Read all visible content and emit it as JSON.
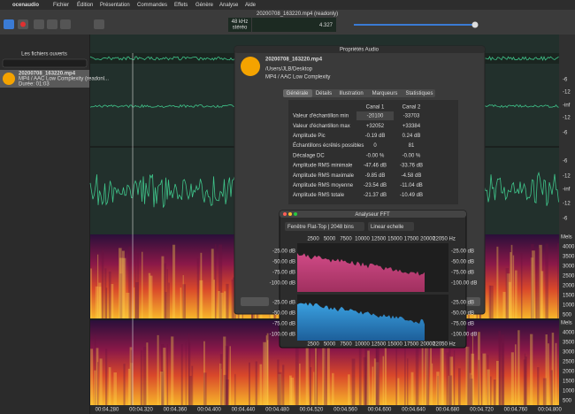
{
  "menu": {
    "app": "ocenaudio",
    "items": [
      "Fichier",
      "Édition",
      "Présentation",
      "Commandes",
      "Effets",
      "Génère",
      "Analyse",
      "Aide"
    ]
  },
  "window_title": "20200708_163220.mp4 (readonly)",
  "toolbar": {
    "rate": "48 kHz",
    "channels": "stéréo",
    "time": "4.327"
  },
  "sidebar": {
    "title": "Les fichiers ouverts",
    "file": {
      "name": "20200708_163220.mp4",
      "format": "MP4 / AAC Low Complexity (readonl...",
      "duration": "Durée: 01:03"
    }
  },
  "level_scale": {
    "channel_1": [
      "-6",
      "-12",
      "-inf",
      "-12",
      "-6"
    ],
    "channel_2": [
      "-6",
      "-12",
      "-inf",
      "-12",
      "-6"
    ]
  },
  "spectrogram_scale": {
    "unit": "Mels",
    "labels": [
      "4000",
      "3500",
      "3000",
      "2500",
      "2000",
      "1500",
      "1000",
      "500"
    ]
  },
  "timeline": [
    "00:04.280",
    "00:04.320",
    "00:04.360",
    "00:04.400",
    "00:04.440",
    "00:04.480",
    "00:04.520",
    "00:04.560",
    "00:04.600",
    "00:04.640",
    "00:04.680",
    "00:04.720",
    "00:04.760",
    "00:04.800"
  ],
  "properties": {
    "title": "Propriétés Audio",
    "file_name": "20200708_163220.mp4",
    "path": "/Users/JLB/Desktop",
    "format": "MP4 / AAC Low Complexity",
    "tabs": [
      "Générale",
      "Détails",
      "Illustration",
      "Marqueurs",
      "Statistiques"
    ],
    "columns": [
      "Canal 1",
      "Canal 2"
    ],
    "rows": [
      [
        "Valeur d'échantillon min",
        "-20100",
        "-33703"
      ],
      [
        "Valeur d'échantillon max",
        "+32052",
        "+33384"
      ],
      [
        "Amplitude Pic",
        "-0.19 dB",
        "0.24 dB"
      ],
      [
        "Échantillons écrêtés possibles",
        "0",
        "81"
      ],
      [
        "Décalage DC",
        "-0.00 %",
        "-0.00 %"
      ],
      [
        "Amplitude RMS minimale",
        "-47.46 dB",
        "-33.76 dB"
      ],
      [
        "Amplitude RMS maximale",
        "-9.85 dB",
        "-4.58 dB"
      ],
      [
        "Amplitude RMS moyenne",
        "-23.54 dB",
        "-11.04 dB"
      ],
      [
        "Amplitude RMS totale",
        "-21.37 dB",
        "-10.49 dB"
      ]
    ]
  },
  "fft": {
    "title": "Analyseur FFT",
    "window": "Fenêtre Flat-Top | 2048 bins",
    "scale": "Linear echelle",
    "frequencies": [
      "2500",
      "5000",
      "7500",
      "10000",
      "12500",
      "15000",
      "17500",
      "20000",
      "22050 Hz"
    ],
    "levels": [
      "-25.00 dB",
      "-50.00 dB",
      "-75.00 dB",
      "-100.00 dB"
    ]
  }
}
